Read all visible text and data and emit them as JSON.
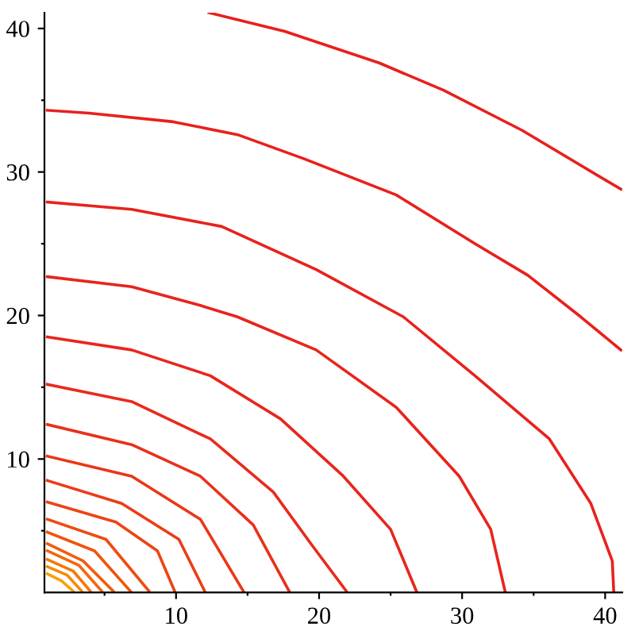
{
  "chart_data": {
    "type": "line",
    "xlim": [
      0.8,
      41.2
    ],
    "ylim": [
      0.7,
      41.1
    ],
    "xticks": [
      {
        "value": 5,
        "label": null
      },
      10,
      {
        "value": 15,
        "label": null
      },
      20,
      {
        "value": 25,
        "label": null
      },
      30,
      {
        "value": 35,
        "label": null
      },
      40
    ],
    "yticks": [
      {
        "value": 5,
        "label": null
      },
      10,
      {
        "value": 15,
        "label": null
      },
      20,
      {
        "value": 25,
        "label": null
      },
      30,
      {
        "value": 35,
        "label": null
      },
      40
    ],
    "grid": false,
    "marker": "none",
    "line_style": "solid",
    "series": [
      {
        "color": "#e8201c",
        "x": [
          12.3,
          17.6,
          24.2,
          28.7,
          34.2,
          41.1
        ],
        "values": [
          41.1,
          39.8,
          37.6,
          35.7,
          32.9,
          28.8
        ]
      },
      {
        "color": "#e8201c",
        "x": [
          1.0,
          3.9,
          9.8,
          14.3,
          19.0,
          25.4,
          30.9,
          34.6,
          38.3,
          41.1
        ],
        "values": [
          34.3,
          34.1,
          33.5,
          32.6,
          30.9,
          28.4,
          25.0,
          22.8,
          19.9,
          17.6
        ]
      },
      {
        "color": "#e8221c",
        "x": [
          1.0,
          6.9,
          13.2,
          19.8,
          25.9,
          30.9,
          36.1,
          39.0,
          40.5,
          40.6
        ],
        "values": [
          27.9,
          27.4,
          26.2,
          23.2,
          19.9,
          15.8,
          11.4,
          6.9,
          2.9,
          0.8
        ]
      },
      {
        "color": "#e8241c",
        "x": [
          1.0,
          6.9,
          11.7,
          14.3,
          19.8,
          25.4,
          29.8,
          32.0,
          33.0
        ],
        "values": [
          22.7,
          22.0,
          20.7,
          19.9,
          17.6,
          13.6,
          8.8,
          5.1,
          0.8
        ]
      },
      {
        "color": "#e8261c",
        "x": [
          1.0,
          6.9,
          12.4,
          17.3,
          21.7,
          25.0,
          26.8
        ],
        "values": [
          18.5,
          17.6,
          15.8,
          12.8,
          8.8,
          5.1,
          0.8
        ]
      },
      {
        "color": "#e92a1c",
        "x": [
          1.0,
          6.9,
          12.4,
          16.8,
          19.5,
          21.9
        ],
        "values": [
          15.2,
          14.0,
          11.4,
          7.7,
          4.0,
          0.8
        ]
      },
      {
        "color": "#ea301a",
        "x": [
          1.0,
          6.9,
          11.7,
          15.4,
          17.9
        ],
        "values": [
          12.4,
          11.0,
          8.8,
          5.4,
          0.8
        ]
      },
      {
        "color": "#eb3618",
        "x": [
          1.0,
          6.9,
          11.7,
          14.7
        ],
        "values": [
          10.2,
          8.8,
          5.8,
          0.8
        ]
      },
      {
        "color": "#ec3c16",
        "x": [
          1.0,
          6.2,
          10.2,
          12.0
        ],
        "values": [
          8.5,
          6.9,
          4.4,
          0.8
        ]
      },
      {
        "color": "#ed4414",
        "x": [
          1.0,
          5.8,
          8.7,
          9.9
        ],
        "values": [
          7.0,
          5.6,
          3.6,
          0.8
        ]
      },
      {
        "color": "#ee4c12",
        "x": [
          1.0,
          5.1,
          8.1
        ],
        "values": [
          5.8,
          4.4,
          0.8
        ]
      },
      {
        "color": "#ef5410",
        "x": [
          1.0,
          4.3,
          6.8
        ],
        "values": [
          4.9,
          3.6,
          0.8
        ]
      },
      {
        "color": "#f05e0e",
        "x": [
          1.0,
          3.5,
          5.6
        ],
        "values": [
          4.1,
          2.9,
          0.8
        ]
      },
      {
        "color": "#f2680c",
        "x": [
          1.0,
          3.2,
          4.8
        ],
        "values": [
          3.6,
          2.6,
          0.8
        ]
      },
      {
        "color": "#f4780a",
        "x": [
          1.0,
          2.8,
          4.0
        ],
        "values": [
          3.0,
          2.2,
          0.8
        ]
      },
      {
        "color": "#f68a08",
        "x": [
          1.0,
          2.4,
          3.4
        ],
        "values": [
          2.5,
          1.9,
          0.8
        ]
      },
      {
        "color": "#f8a006",
        "x": [
          1.0,
          2.0,
          2.8
        ],
        "values": [
          2.0,
          1.5,
          0.8
        ]
      }
    ]
  }
}
